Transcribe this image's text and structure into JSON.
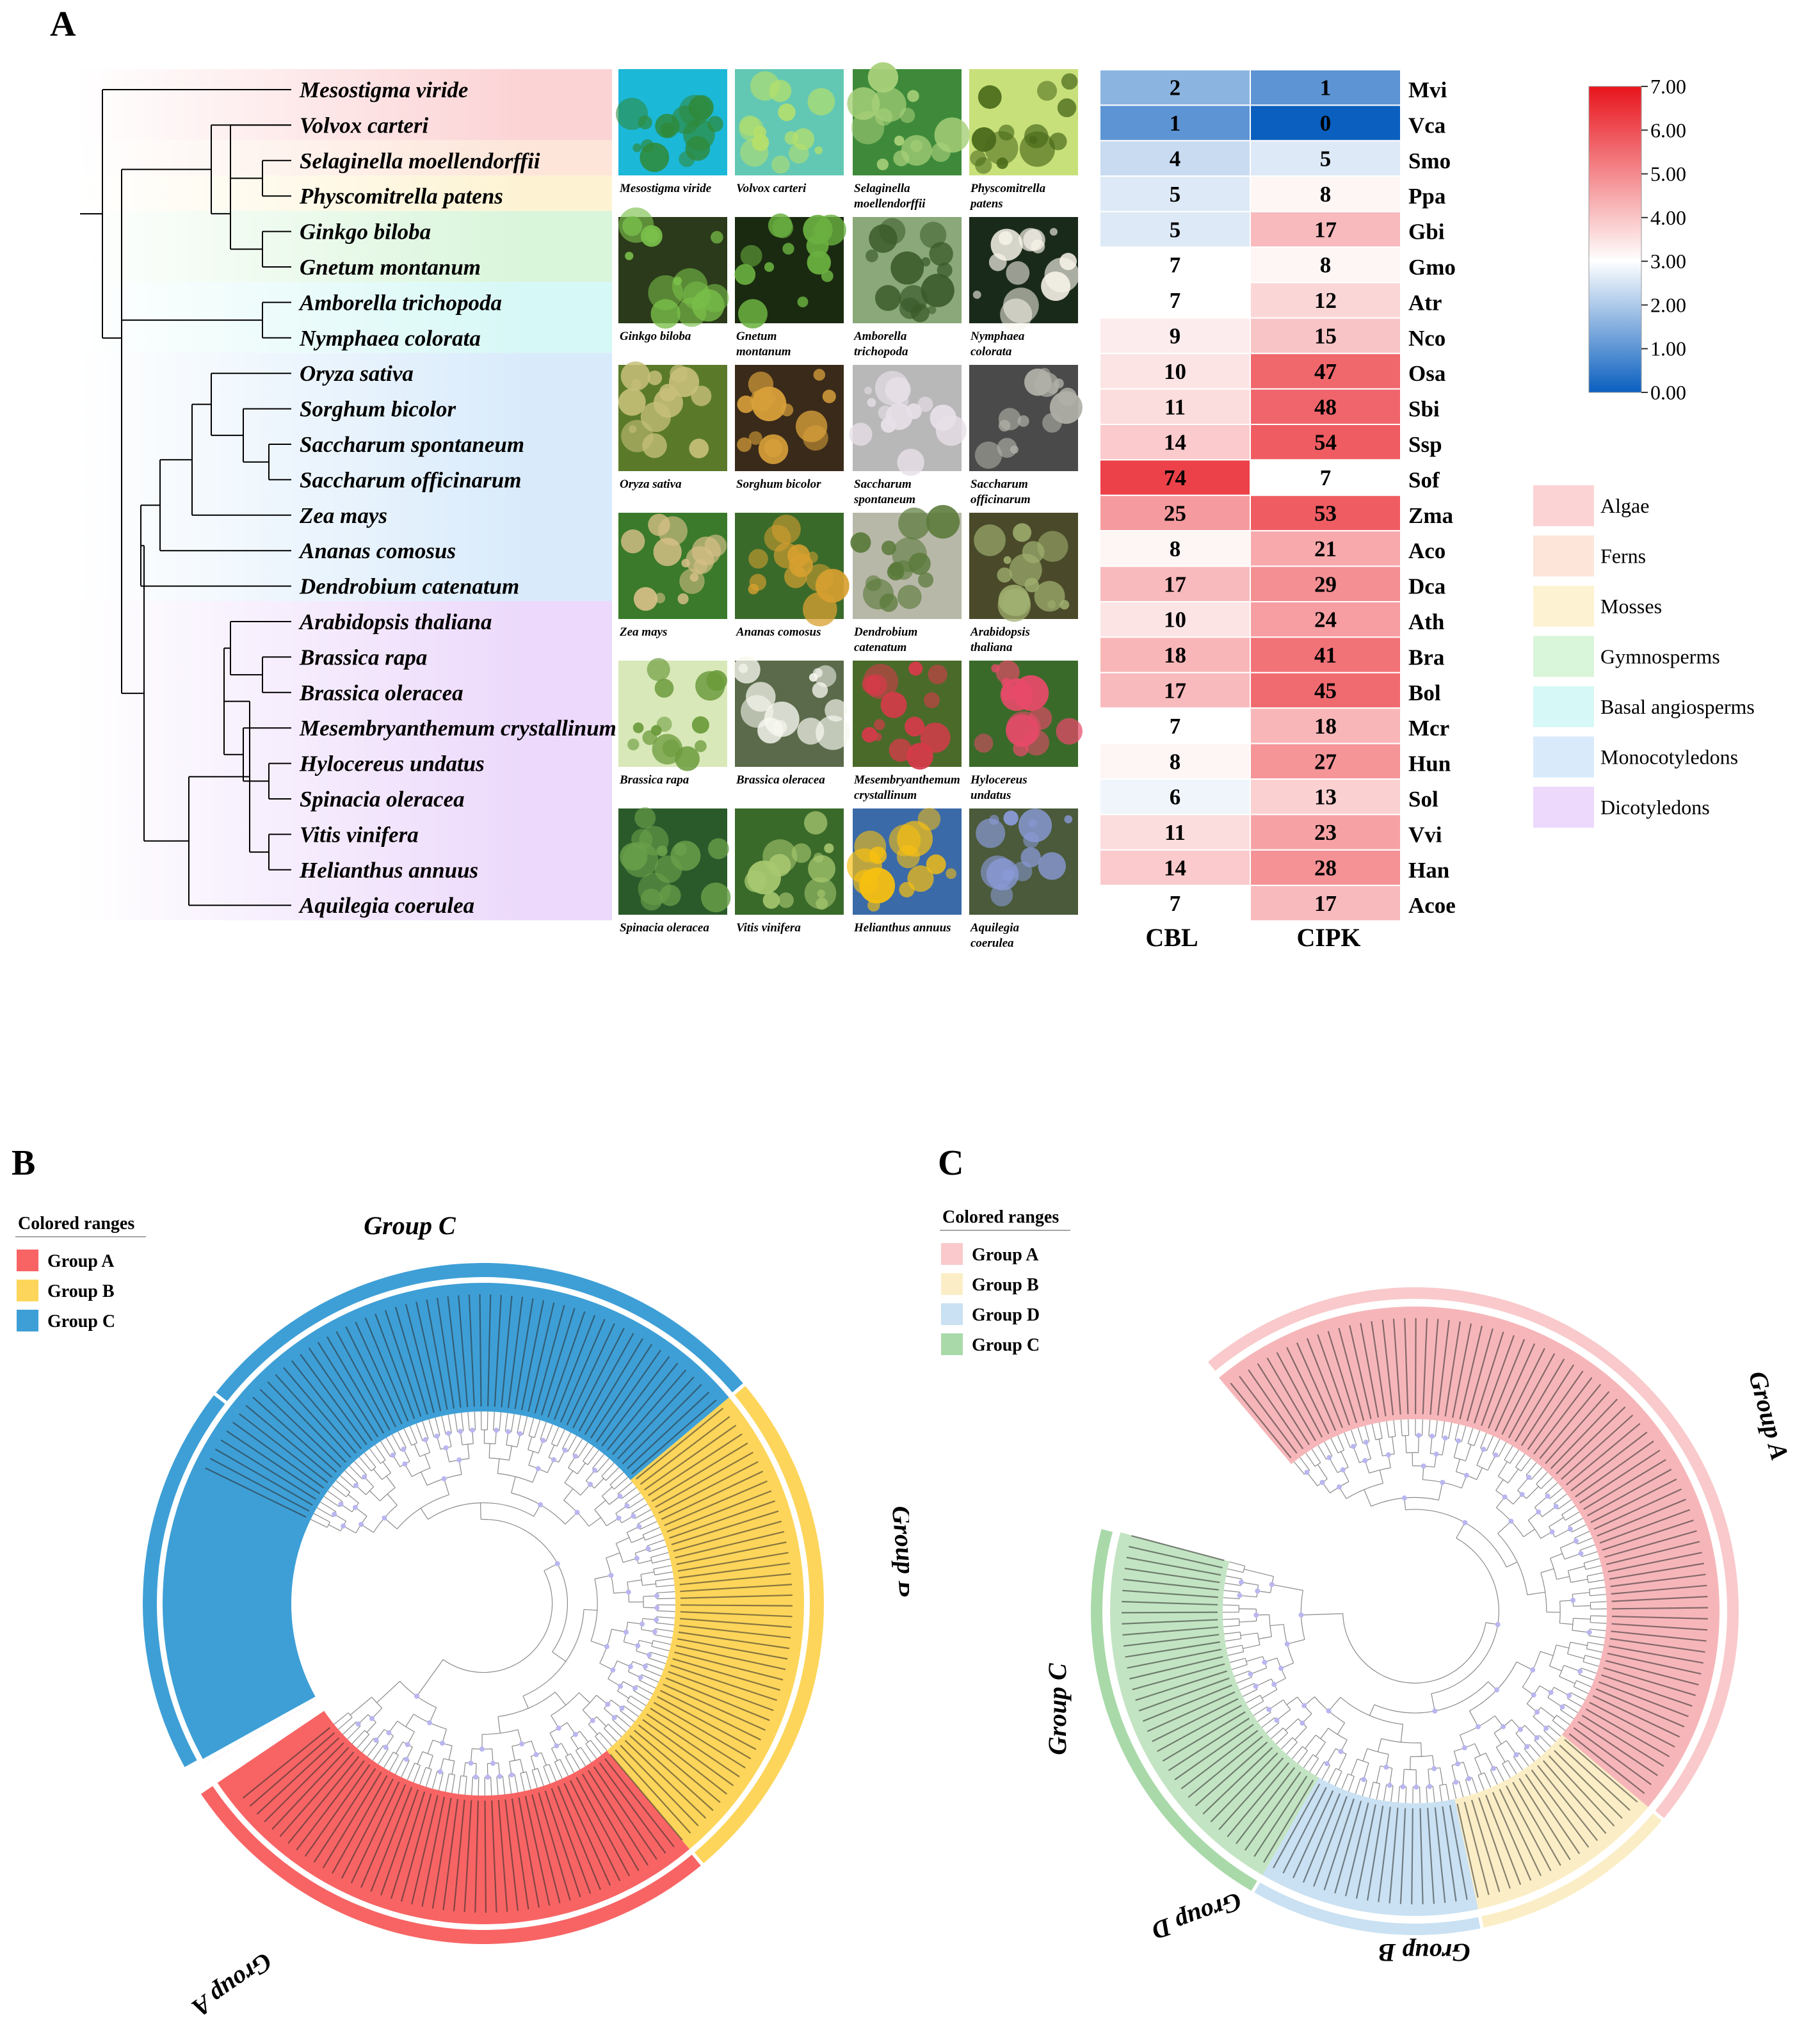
{
  "panels": {
    "a": "A",
    "b": "B",
    "c": "C"
  },
  "species": [
    "Mesostigma viride",
    "Volvox carteri",
    "Selaginella moellendorffii",
    "Physcomitrella patens",
    "Ginkgo biloba",
    "Gnetum montanum",
    "Amborella trichopoda",
    "Nymphaea colorata",
    "Oryza sativa",
    "Sorghum bicolor",
    "Saccharum spontaneum",
    "Saccharum officinarum",
    "Zea mays",
    "Ananas comosus",
    "Dendrobium catenatum",
    "Arabidopsis thaliana",
    "Brassica rapa",
    "Brassica oleracea",
    "Mesembryanthemum crystallinum",
    "Hylocereus undatus",
    "Spinacia oleracea",
    "Vitis vinifera",
    "Helianthus annuus",
    "Aquilegia coerulea"
  ],
  "photo_captions": [
    [
      "Mesostigma viride"
    ],
    [
      "Volvox carteri"
    ],
    [
      "Selaginella",
      "moellendorffii"
    ],
    [
      "Physcomitrella",
      "patens"
    ],
    [
      "Ginkgo biloba"
    ],
    [
      "Gnetum",
      "montanum"
    ],
    [
      "Amborella",
      "trichopoda"
    ],
    [
      "Nymphaea",
      "colorata"
    ],
    [
      "Oryza sativa"
    ],
    [
      "Sorghum bicolor"
    ],
    [
      "Saccharum",
      "spontaneum"
    ],
    [
      "Saccharum",
      "officinarum"
    ],
    [
      "Zea mays"
    ],
    [
      "Ananas comosus"
    ],
    [
      "Dendrobium",
      "catenatum"
    ],
    [
      "Arabidopsis",
      "thaliana"
    ],
    [
      "Brassica rapa"
    ],
    [
      "Brassica oleracea"
    ],
    [
      "Mesembryanthemum",
      "crystallinum"
    ],
    [
      "Hylocereus",
      "undatus"
    ],
    [
      "Spinacia oleracea"
    ],
    [
      "Vitis vinifera"
    ],
    [
      "Helianthus annuus"
    ],
    [
      "Aquilegia",
      "coerulea"
    ]
  ],
  "heatmap": {
    "columns": [
      "CBL",
      "CIPK"
    ],
    "abbreviations": [
      "Mvi",
      "Vca",
      "Smo",
      "Ppa",
      "Gbi",
      "Gmo",
      "Atr",
      "Nco",
      "Osa",
      "Sbi",
      "Ssp",
      "Sof",
      "Zma",
      "Aco",
      "Dca",
      "Ath",
      "Bra",
      "Bol",
      "Mcr",
      "Hun",
      "Sol",
      "Vvi",
      "Han",
      "Acoe"
    ],
    "cbl": [
      2,
      1,
      4,
      5,
      5,
      7,
      7,
      9,
      10,
      11,
      14,
      74,
      25,
      8,
      17,
      10,
      18,
      17,
      7,
      8,
      6,
      11,
      14,
      7
    ],
    "cipk": [
      1,
      0,
      5,
      8,
      17,
      8,
      12,
      15,
      47,
      48,
      54,
      7,
      53,
      21,
      29,
      24,
      41,
      45,
      18,
      27,
      13,
      23,
      28,
      17
    ],
    "scale_ticks": [
      "0.00",
      "1.00",
      "2.00",
      "3.00",
      "4.00",
      "5.00",
      "6.00",
      "7.00"
    ],
    "scale_colors": {
      "low": "#0a5fbf",
      "mid": "#ffffff",
      "high": "#e8141c"
    }
  },
  "lineage_legend": [
    {
      "label": "Algae",
      "color": "#fcd3d5"
    },
    {
      "label": "Ferns",
      "color": "#fde5d9"
    },
    {
      "label": "Mosses",
      "color": "#fdf3d3"
    },
    {
      "label": "Gymnosperms",
      "color": "#d9f5da"
    },
    {
      "label": "Basal angiosperms",
      "color": "#d6f8f6"
    },
    {
      "label": "Monocotyledons",
      "color": "#d9ebfb"
    },
    {
      "label": "Dicotyledons",
      "color": "#ecd9fb"
    }
  ],
  "tree_b": {
    "legend_title": "Colored ranges",
    "ranges": [
      {
        "label": "Group A",
        "color": "#f86464"
      },
      {
        "label": "Group B",
        "color": "#fdd55a"
      },
      {
        "label": "Group C",
        "color": "#3e9fd6"
      }
    ],
    "group_labels": [
      "Group C",
      "Group B",
      "Group A"
    ]
  },
  "tree_c": {
    "legend_title": "Colored ranges",
    "ranges": [
      {
        "label": "Group A",
        "color": "#f9c9cb"
      },
      {
        "label": "Group B",
        "color": "#fbeec6"
      },
      {
        "label": "Group D",
        "color": "#c9e1f2"
      },
      {
        "label": "Group C",
        "color": "#a9d9a9"
      }
    ],
    "group_labels": [
      "Group A",
      "Group C",
      "Group D",
      "Group B"
    ]
  }
}
